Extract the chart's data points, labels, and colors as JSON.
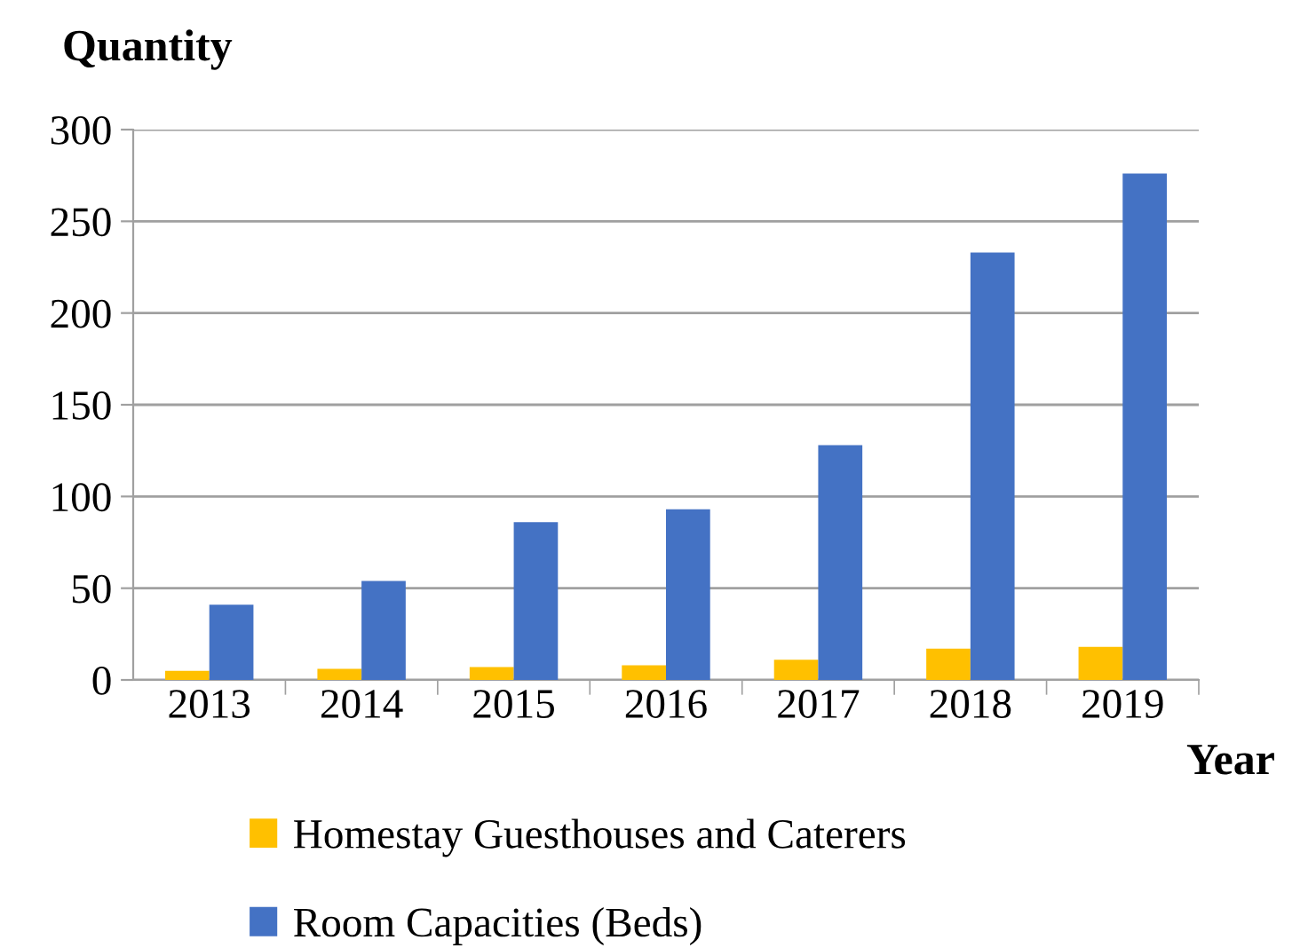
{
  "chart_data": {
    "type": "bar",
    "xlabel": "Year",
    "ylabel": "Quantity",
    "categories": [
      "2013",
      "2014",
      "2015",
      "2016",
      "2017",
      "2018",
      "2019"
    ],
    "series": [
      {
        "name": "Homestay Guesthouses and Caterers",
        "color": "#ffc000",
        "values": [
          5,
          6,
          7,
          8,
          11,
          17,
          18
        ]
      },
      {
        "name": "Room Capacities (Beds)",
        "color": "#4472c4",
        "values": [
          41,
          54,
          86,
          93,
          128,
          233,
          276
        ]
      }
    ],
    "ylim": [
      0,
      300
    ],
    "yticks": [
      0,
      50,
      100,
      150,
      200,
      250,
      300
    ],
    "grid": "y",
    "legend": "bottom"
  }
}
